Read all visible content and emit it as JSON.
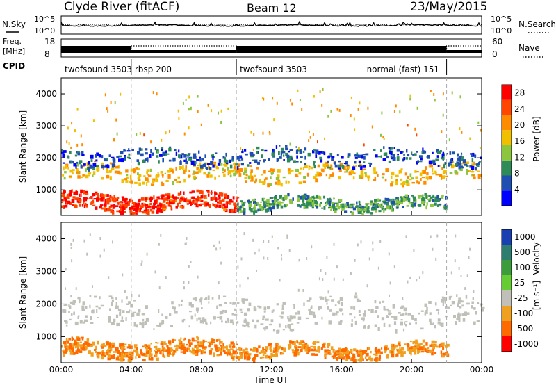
{
  "header": {
    "station": "Clyde River (fitACF)",
    "beam": "Beam 12",
    "date": "23/May/2015"
  },
  "left_labels": {
    "nsky": "N.Sky",
    "freq": "Freq.",
    "freq_unit": "[MHz]",
    "cpid": "CPID"
  },
  "right_labels": {
    "nsearch": "N.Search",
    "nave": "Nave"
  },
  "noise_axis": {
    "top": "10^5",
    "bottom": "10^0"
  },
  "freq_axis": {
    "top": "18",
    "bottom": "8"
  },
  "nave_axis": {
    "top": "60",
    "bottom": "0"
  },
  "cpid_segments": [
    {
      "label": "twofsound 3503",
      "start_h": 0,
      "end_h": 4
    },
    {
      "label": "rbsp 200",
      "start_h": 4,
      "end_h": 10
    },
    {
      "label": "twofsound 3503",
      "start_h": 10,
      "end_h": 22
    },
    {
      "label": "normal (fast) 151",
      "start_h": 22,
      "end_h": 24
    }
  ],
  "chart_data": [
    {
      "type": "heatmap",
      "quantity": "Power",
      "xlabel": "Time UT",
      "ylabel": "Slant Range [km]",
      "xlim_hours": [
        0,
        24
      ],
      "x_ticks": [
        "00:00",
        "04:00",
        "08:00",
        "12:00",
        "16:00",
        "20:00",
        "00:00"
      ],
      "ylim_km": [
        200,
        4500
      ],
      "y_ticks": [
        1000,
        2000,
        3000,
        4000
      ],
      "colorbar": {
        "label": "Power [dB]",
        "ticks": [
          4,
          8,
          12,
          16,
          20,
          24,
          28
        ],
        "range": [
          0,
          30
        ],
        "colors": [
          "#0000ff",
          "#1f4fb0",
          "#2e8b57",
          "#8cc63f",
          "#f0c000",
          "#ff8c00",
          "#ff4500",
          "#ff0000"
        ]
      },
      "echo_bands": [
        {
          "time_h": [
            0,
            24
          ],
          "range_km": [
            1300,
            1800
          ],
          "level": 18
        },
        {
          "time_h": [
            0,
            10
          ],
          "range_km": [
            400,
            900
          ],
          "level": 26
        },
        {
          "time_h": [
            10,
            22
          ],
          "range_km": [
            400,
            800
          ],
          "level": 10
        },
        {
          "time_h": [
            0,
            24
          ],
          "range_km": [
            1800,
            2300
          ],
          "level": 6
        }
      ]
    },
    {
      "type": "heatmap",
      "quantity": "Velocity",
      "xlabel": "Time UT",
      "ylabel": "Slant Range [km]",
      "xlim_hours": [
        0,
        24
      ],
      "x_ticks": [
        "00:00",
        "04:00",
        "08:00",
        "12:00",
        "16:00",
        "20:00",
        "00:00"
      ],
      "ylim_km": [
        200,
        4500
      ],
      "y_ticks": [
        1000,
        2000,
        3000,
        4000
      ],
      "colorbar": {
        "label": "Velocity [m s-1]",
        "unit_display": "[m s⁻¹]",
        "ticks": [
          1000,
          500,
          100,
          25,
          -25,
          -100,
          -500,
          -1000
        ],
        "colors": [
          "#1a3fb0",
          "#2e7d6e",
          "#3c9c3c",
          "#66cc33",
          "#c0c0b8",
          "#f0a020",
          "#ff6a00",
          "#ff0000"
        ]
      },
      "echo_bands": [
        {
          "time_h": [
            0,
            24
          ],
          "range_km": [
            1300,
            2200
          ],
          "level": 0
        },
        {
          "time_h": [
            0,
            10
          ],
          "range_km": [
            400,
            900
          ],
          "level": -100
        },
        {
          "time_h": [
            10,
            22
          ],
          "range_km": [
            400,
            800
          ],
          "level": -100
        }
      ]
    }
  ]
}
